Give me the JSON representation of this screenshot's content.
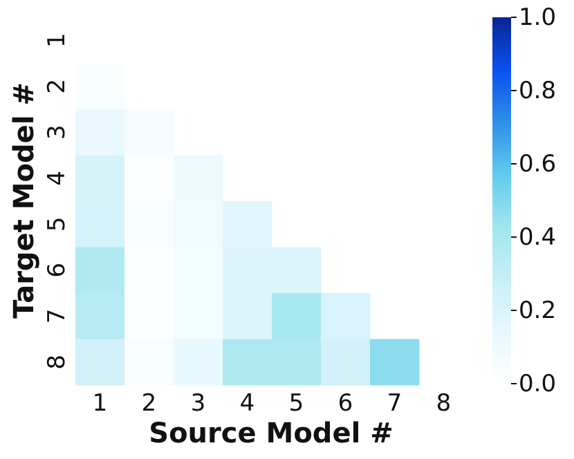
{
  "chart_data": {
    "type": "heatmap",
    "title": "",
    "xlabel": "Source Model #",
    "ylabel": "Target Model #",
    "x_categories": [
      "1",
      "2",
      "3",
      "4",
      "5",
      "6",
      "7",
      "8"
    ],
    "y_categories": [
      "1",
      "2",
      "3",
      "4",
      "5",
      "6",
      "7",
      "8"
    ],
    "mask": "upper-triangle-including-diagonal",
    "rows": [
      {
        "target": "2",
        "values": [
          0.04
        ]
      },
      {
        "target": "3",
        "values": [
          0.12,
          0.05
        ]
      },
      {
        "target": "4",
        "values": [
          0.22,
          0.02,
          0.11
        ]
      },
      {
        "target": "5",
        "values": [
          0.23,
          0.04,
          0.09,
          0.17
        ]
      },
      {
        "target": "6",
        "values": [
          0.37,
          0.02,
          0.07,
          0.19,
          0.19
        ]
      },
      {
        "target": "7",
        "values": [
          0.35,
          0.02,
          0.07,
          0.19,
          0.4,
          0.21
        ]
      },
      {
        "target": "8",
        "values": [
          0.24,
          0.04,
          0.13,
          0.38,
          0.38,
          0.24,
          0.48
        ]
      }
    ],
    "colorbar": {
      "range": [
        0.0,
        1.0
      ],
      "ticks": [
        "0.0",
        "0.2",
        "0.4",
        "0.6",
        "0.8",
        "1.0"
      ],
      "colormap": [
        "#ffffff",
        "#e6f8fd",
        "#c8eef8",
        "#a0e6ee",
        "#62cbef",
        "#2d8fe8",
        "#0a50f0",
        "#0a2494"
      ]
    }
  }
}
